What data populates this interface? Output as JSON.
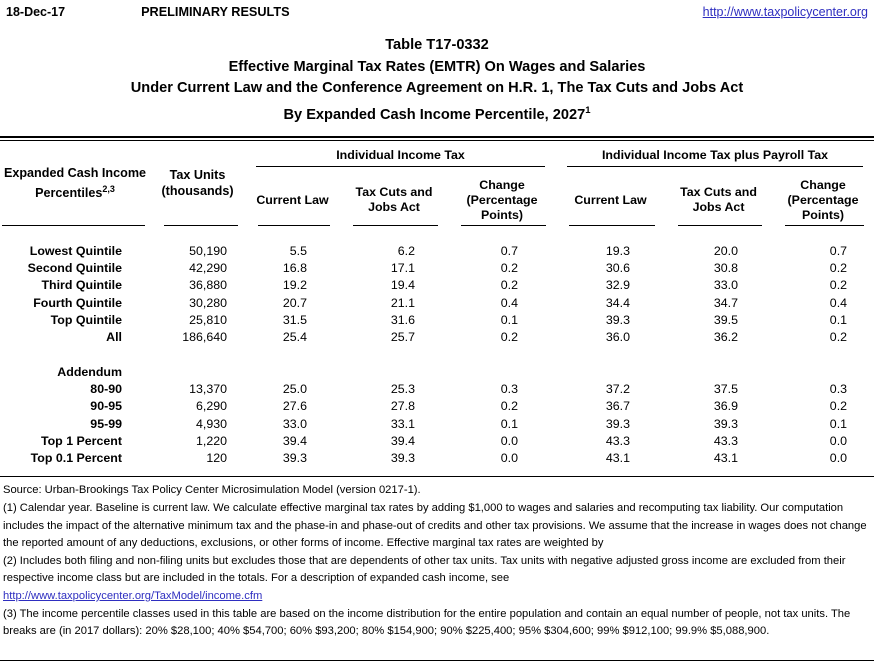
{
  "header": {
    "date": "18-Dec-17",
    "status": "PRELIMINARY RESULTS",
    "site_link": "http://www.taxpolicycenter.org"
  },
  "title": {
    "line1": "Table T17-0332",
    "line2": "Effective Marginal Tax Rates (EMTR) On Wages and Salaries",
    "line3": "Under Current Law and the Conference Agreement on H.R. 1, The Tax Cuts and Jobs Act",
    "line4": "By Expanded Cash Income Percentile, 2027",
    "line4_sup": "1"
  },
  "table": {
    "stub_header": {
      "line1": "Expanded Cash Income",
      "line2": "Percentiles",
      "sup": "2,3"
    },
    "units_header": {
      "line1": "Tax Units",
      "line2": "(thousands)"
    },
    "group1": "Individual Income Tax",
    "group2": "Individual Income Tax plus Payroll Tax",
    "sub": {
      "current": "Current Law",
      "tcja1": "Tax Cuts and",
      "tcja2": "Jobs Act",
      "chg1": "Change",
      "chg2": "(Percentage",
      "chg3": "Points)"
    },
    "rows": [
      {
        "type": "data",
        "label": "Lowest Quintile",
        "values": [
          "50,190",
          "5.5",
          "6.2",
          "0.7",
          "19.3",
          "20.0",
          "0.7"
        ]
      },
      {
        "type": "data",
        "label": "Second Quintile",
        "values": [
          "42,290",
          "16.8",
          "17.1",
          "0.2",
          "30.6",
          "30.8",
          "0.2"
        ]
      },
      {
        "type": "data",
        "label": "Third Quintile",
        "values": [
          "36,880",
          "19.2",
          "19.4",
          "0.2",
          "32.9",
          "33.0",
          "0.2"
        ]
      },
      {
        "type": "data",
        "label": "Fourth Quintile",
        "values": [
          "30,280",
          "20.7",
          "21.1",
          "0.4",
          "34.4",
          "34.7",
          "0.4"
        ]
      },
      {
        "type": "data",
        "label": "Top Quintile",
        "values": [
          "25,810",
          "31.5",
          "31.6",
          "0.1",
          "39.3",
          "39.5",
          "0.1"
        ]
      },
      {
        "type": "data",
        "label": "All",
        "values": [
          "186,640",
          "25.4",
          "25.7",
          "0.2",
          "36.0",
          "36.2",
          "0.2"
        ]
      },
      {
        "type": "spacer",
        "label": "",
        "values": [
          "",
          "",
          "",
          "",
          "",
          "",
          ""
        ]
      },
      {
        "type": "section",
        "label": "Addendum",
        "values": [
          "",
          "",
          "",
          "",
          "",
          "",
          ""
        ]
      },
      {
        "type": "data",
        "label": "80-90",
        "values": [
          "13,370",
          "25.0",
          "25.3",
          "0.3",
          "37.2",
          "37.5",
          "0.3"
        ]
      },
      {
        "type": "data",
        "label": "90-95",
        "values": [
          "6,290",
          "27.6",
          "27.8",
          "0.2",
          "36.7",
          "36.9",
          "0.2"
        ]
      },
      {
        "type": "data",
        "label": "95-99",
        "values": [
          "4,930",
          "33.0",
          "33.1",
          "0.1",
          "39.3",
          "39.3",
          "0.1"
        ]
      },
      {
        "type": "data",
        "label": "Top 1 Percent",
        "values": [
          "1,220",
          "39.4",
          "39.4",
          "0.0",
          "43.3",
          "43.3",
          "0.0"
        ]
      },
      {
        "type": "data",
        "label": "Top 0.1 Percent",
        "values": [
          "120",
          "39.3",
          "39.3",
          "0.0",
          "43.1",
          "43.1",
          "0.0"
        ]
      }
    ]
  },
  "footnotes": {
    "source": "Source: Urban-Brookings Tax Policy Center Microsimulation Model (version 0217-1).",
    "note1": "(1) Calendar year. Baseline is current law. We calculate effective marginal tax rates by adding $1,000 to wages and salaries and recomputing tax liability. Our computation includes the impact of the alternative minimum tax and the phase-in and phase-out of credits and other tax provisions. We assume that the increase in wages does not change the reported amount of any deductions, exclusions, or other forms of income. Effective marginal tax rates are weighted by",
    "note2": "(2) Includes both filing and non-filing units but excludes those that are dependents of other tax units. Tax units with negative adjusted gross income are excluded from their respective income class but are included in the totals. For a description of expanded cash income, see",
    "note2_link": "http://www.taxpolicycenter.org/TaxModel/income.cfm",
    "note3": "(3) The income percentile classes used in this table are based on the income distribution for the entire population and contain an equal number of people, not tax units. The breaks are (in 2017 dollars): 20% $28,100; 40% $54,700; 60% $93,200; 80% $154,900; 90% $225,400; 95% $304,600; 99% $912,100; 99.9% $5,088,900."
  },
  "colors": {
    "link": "#2E2EC0",
    "text": "#000000",
    "background": "#FFFFFF"
  }
}
